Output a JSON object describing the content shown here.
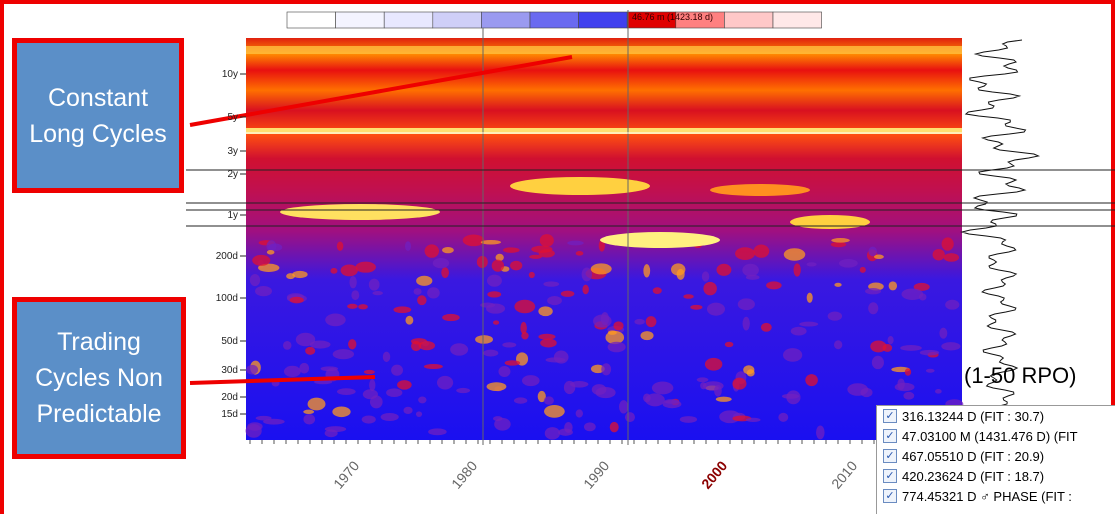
{
  "scale_label": "46.76 m (1423.18 d)",
  "y_axis": {
    "ticks": [
      "10y",
      "5y",
      "3y",
      "2y",
      "1y",
      "200d",
      "100d",
      "50d",
      "30d",
      "20d",
      "15d"
    ]
  },
  "x_axis": {
    "ticks": [
      {
        "label": "1970"
      },
      {
        "label": "1980"
      },
      {
        "label": "1990"
      },
      {
        "label": "2000",
        "color": "#8b0000"
      },
      {
        "label": "2010"
      }
    ]
  },
  "annotations": [
    "Constant Long Cycles",
    "Trading Cycles Non Predictable"
  ],
  "range_label": "(1-50 RPO)",
  "legend": {
    "items": [
      {
        "label": "316.13244 D (FIT : 30.7)",
        "checked": true
      },
      {
        "label": "47.03100 M (1431.476 D) (FIT",
        "checked": true
      },
      {
        "label": "467.05510 D (FIT : 20.9)",
        "checked": true
      },
      {
        "label": "420.23624 D (FIT : 18.7)",
        "checked": true
      },
      {
        "label": "774.45321 D ♂ PHASE (FIT :",
        "checked": true
      }
    ]
  }
}
